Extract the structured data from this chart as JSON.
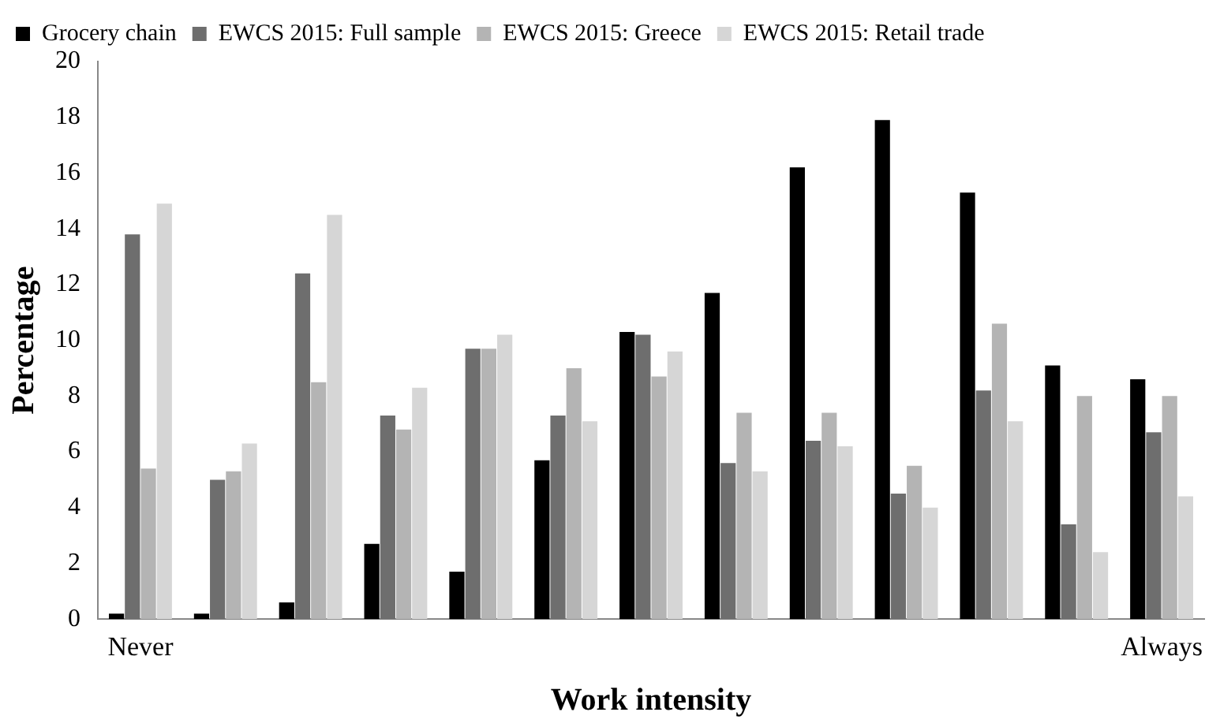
{
  "chart_data": {
    "type": "bar",
    "xlabel": "Work intensity",
    "ylabel": "Percentage",
    "categories": [
      "Never",
      null,
      null,
      null,
      null,
      null,
      null,
      null,
      null,
      null,
      null,
      null,
      "Always"
    ],
    "series": [
      {
        "name": "Grocery chain",
        "color": "#000000",
        "values": [
          0.2,
          0.2,
          0.6,
          2.7,
          1.7,
          5.7,
          10.3,
          11.7,
          16.2,
          17.9,
          15.3,
          9.1,
          8.6
        ]
      },
      {
        "name": "EWCS 2015: Full sample",
        "color": "#6e6e6e",
        "values": [
          13.8,
          5.0,
          12.4,
          7.3,
          9.7,
          7.3,
          10.2,
          5.6,
          6.4,
          4.5,
          8.2,
          3.4,
          6.7
        ]
      },
      {
        "name": "EWCS 2015: Greece",
        "color": "#b4b4b4",
        "values": [
          5.4,
          5.3,
          8.5,
          6.8,
          9.7,
          9.0,
          8.7,
          7.4,
          7.4,
          5.5,
          10.6,
          8.0,
          8.0
        ]
      },
      {
        "name": "EWCS 2015: Retail trade",
        "color": "#d6d6d6",
        "values": [
          14.9,
          6.3,
          14.5,
          8.3,
          10.2,
          7.1,
          9.6,
          5.3,
          6.2,
          4.0,
          7.1,
          2.4,
          4.4
        ]
      }
    ],
    "ylim": [
      0,
      20
    ],
    "yticks": [
      0,
      2,
      4,
      6,
      8,
      10,
      12,
      14,
      16,
      18,
      20
    ],
    "grid": false,
    "legend": "top"
  }
}
